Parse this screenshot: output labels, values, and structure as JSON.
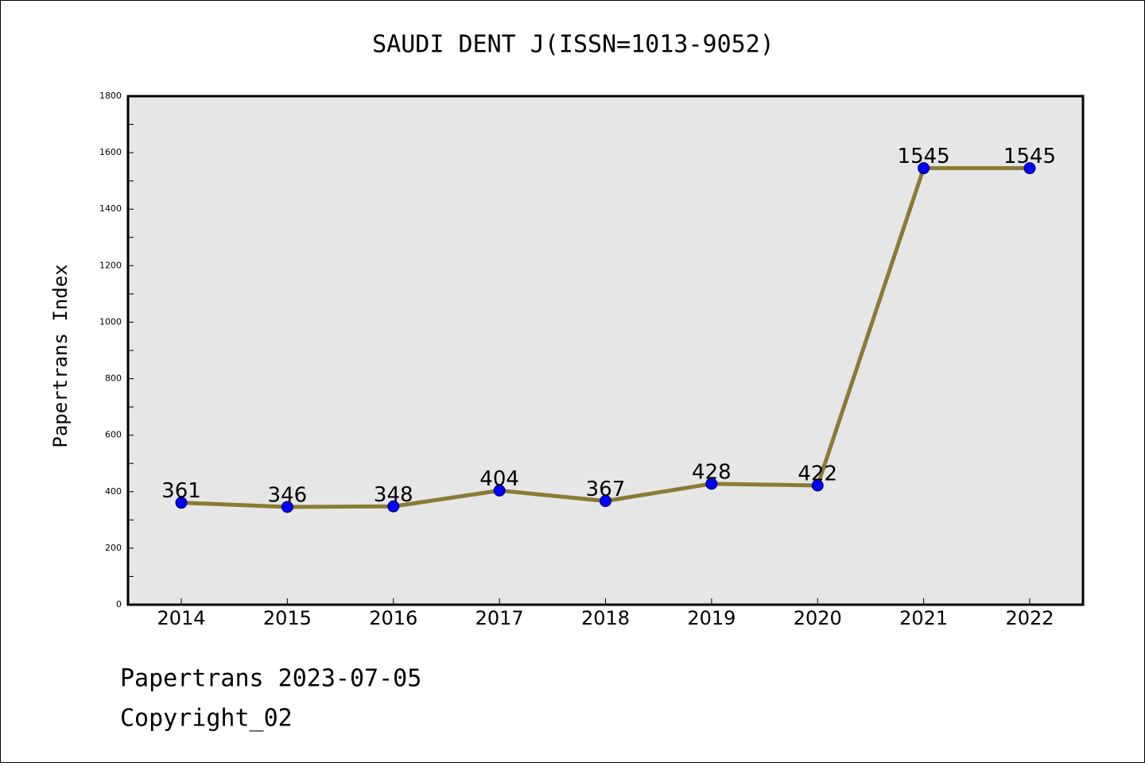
{
  "chart_data": {
    "type": "line",
    "title": "SAUDI DENT J(ISSN=1013-9052)",
    "xlabel": "",
    "ylabel": "Papertrans Index",
    "categories": [
      "2014",
      "2015",
      "2016",
      "2017",
      "2018",
      "2019",
      "2020",
      "2021",
      "2022"
    ],
    "series": [
      {
        "values": [
          361,
          346,
          348,
          404,
          367,
          428,
          422,
          1545,
          1545
        ],
        "line_color": "#8b7a35",
        "marker_color": "#0000ff"
      }
    ],
    "data_labels": [
      "361",
      "346",
      "348",
      "404",
      "367",
      "428",
      "422",
      "1545",
      "1545"
    ],
    "ylim": [
      0,
      1800
    ],
    "y_ticks": [
      0,
      200,
      400,
      600,
      800,
      1000,
      1200,
      1400,
      1600,
      1800
    ],
    "y_tick_labels": [
      "0",
      "200",
      "400",
      "600",
      "800",
      "1000",
      "1200",
      "1400",
      "1600",
      "1800"
    ],
    "grid": false,
    "plot_background": "#e6e6e6"
  },
  "footer": {
    "line1": "Papertrans 2023-07-05",
    "line2": "Copyright_02"
  }
}
